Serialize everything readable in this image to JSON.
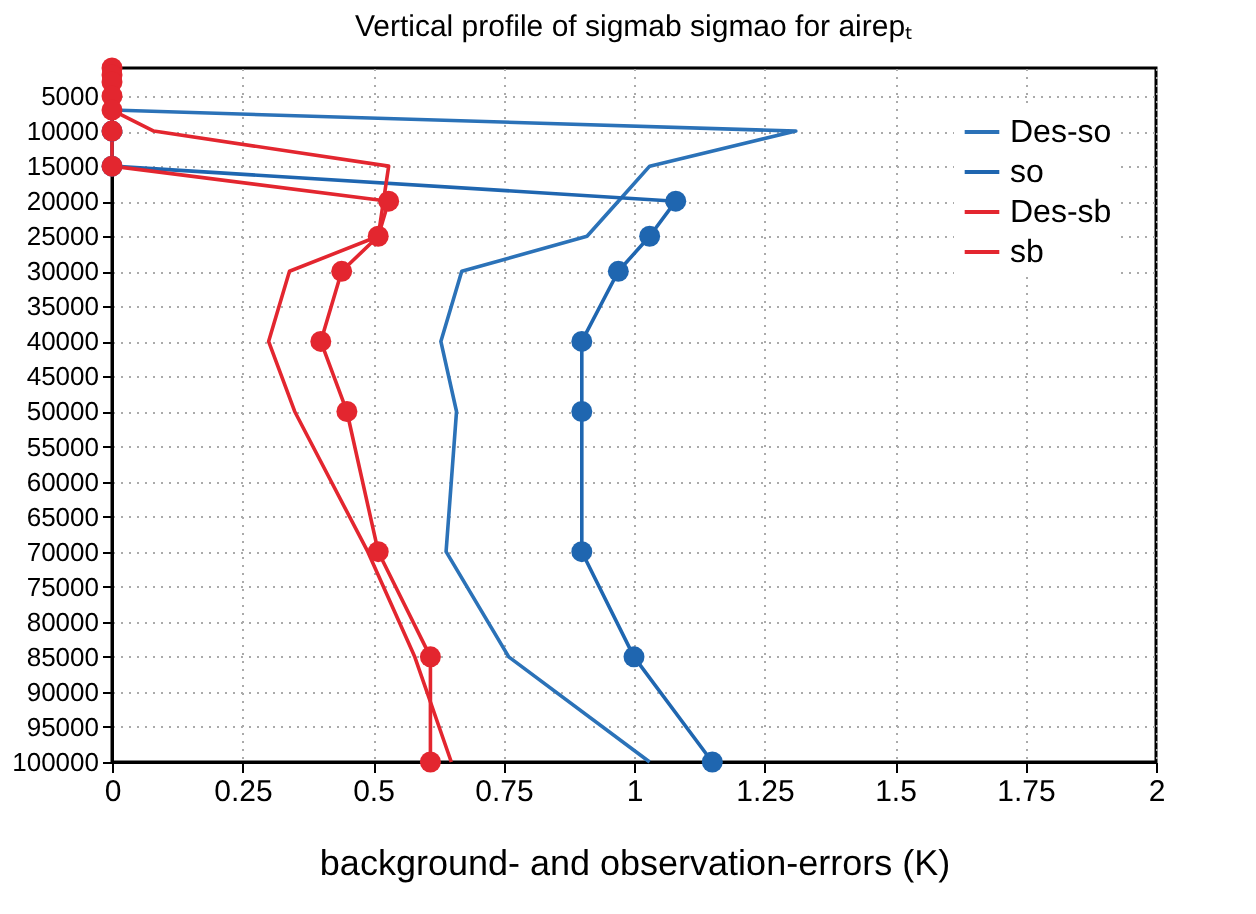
{
  "chart_data": {
    "type": "line",
    "title": "Vertical profile of sigmab  sigmao for airepₜ",
    "xlabel": "background- and observation-errors  (K)",
    "orientation": "horizontal",
    "x": [
      1000,
      2000,
      3000,
      5000,
      7000,
      10000,
      15000,
      20000,
      25000,
      30000,
      40000,
      50000,
      70000,
      85000,
      100000
    ],
    "series": [
      {
        "name": "Des-so",
        "color": "#2b72b8",
        "marker": "none",
        "values": [
          null,
          null,
          null,
          0,
          0,
          1.31,
          1.03,
          0.97,
          0.91,
          0.67,
          0.63,
          0.66,
          0.64,
          0.76,
          1.03
        ]
      },
      {
        "name": "so",
        "color": "#1f66b0",
        "marker": "circle",
        "values": [
          null,
          null,
          null,
          null,
          null,
          0,
          0,
          1.08,
          1.03,
          0.97,
          0.9,
          0.9,
          0.9,
          1.0,
          1.15
        ]
      },
      {
        "name": "Des-sb",
        "color": "#e3262f",
        "marker": "none",
        "values": [
          0,
          0,
          0,
          0,
          0,
          0.08,
          0.53,
          0.52,
          0.51,
          0.34,
          0.3,
          0.35,
          0.49,
          0.58,
          0.65
        ]
      },
      {
        "name": "sb",
        "color": "#e3262f",
        "marker": "circle",
        "values": [
          0,
          0,
          0,
          0,
          0,
          0,
          0,
          0.53,
          0.51,
          0.44,
          0.4,
          0.45,
          0.51,
          0.61,
          0.61
        ]
      }
    ],
    "xlim": [
      0,
      2
    ],
    "xticks": [
      0,
      0.25,
      0.5,
      0.75,
      1,
      1.25,
      1.5,
      1.75,
      2
    ],
    "ylim": [
      100000,
      1000
    ],
    "yticks": [
      5000,
      10000,
      15000,
      20000,
      25000,
      30000,
      35000,
      40000,
      45000,
      50000,
      55000,
      60000,
      65000,
      70000,
      75000,
      80000,
      85000,
      90000,
      95000,
      100000
    ],
    "grid": true,
    "legend": "top right"
  }
}
